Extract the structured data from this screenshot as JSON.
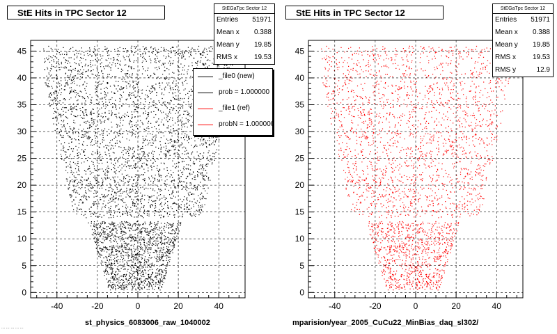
{
  "left_panel": {
    "title": "StE Hits in TPC Sector 12",
    "stats": {
      "name": "StEGaTpc Sector 12",
      "rows": [
        {
          "k": "Entries",
          "v": "51971"
        },
        {
          "k": "Mean x",
          "v": "0.388"
        },
        {
          "k": "Mean y",
          "v": "19.85"
        },
        {
          "k": "RMS x",
          "v": "19.53"
        }
      ]
    },
    "footer": "st_physics_6083006_raw_1040002",
    "color": "#000000"
  },
  "right_panel": {
    "title": "StE Hits in TPC Sector 12",
    "stats": {
      "name": "StEGaTpc Sector 12",
      "rows": [
        {
          "k": "Entries",
          "v": "51971"
        },
        {
          "k": "Mean x",
          "v": "0.388"
        },
        {
          "k": "Mean y",
          "v": "19.85"
        },
        {
          "k": "RMS x",
          "v": "19.53"
        },
        {
          "k": "RMS y",
          "v": "12.9"
        }
      ]
    },
    "footer": "mparision/year_2005_CuCu22_MinBias_daq_sl302/",
    "color": "#ff0000"
  },
  "legend": {
    "items": [
      {
        "label": "_file0 (new)",
        "color": "#000000"
      },
      {
        "label": "prob = 1.000000",
        "color": "#000000"
      },
      {
        "label": "_file1 (ref)",
        "color": "#ff0000"
      },
      {
        "label": "probN = 1.000000",
        "color": "#ff0000"
      }
    ]
  },
  "bottom_left_text": "... ... ... ... ...",
  "chart_data": [
    {
      "type": "scatter",
      "title": "StE Hits in TPC Sector 12",
      "xlabel": "st_physics_6083006_raw_1040002",
      "ylabel": "",
      "xlim": [
        -53,
        53
      ],
      "ylim": [
        -1,
        47
      ],
      "x_ticks": [
        -40,
        -20,
        0,
        20,
        40
      ],
      "y_ticks": [
        0,
        5,
        10,
        15,
        20,
        25,
        30,
        35,
        40,
        45
      ],
      "grid": true,
      "series": [
        {
          "color": "#000000",
          "entries": 51971
        }
      ],
      "envelope": [
        [
          0.5,
          13
        ],
        [
          13,
          23
        ],
        [
          15,
          32
        ],
        [
          40,
          47
        ],
        [
          45,
          47
        ]
      ]
    },
    {
      "type": "scatter",
      "title": "StE Hits in TPC Sector 12",
      "xlabel": "mparision/year_2005_CuCu22_MinBias_daq_sl302/",
      "ylabel": "",
      "xlim": [
        -53,
        53
      ],
      "ylim": [
        -1,
        47
      ],
      "x_ticks": [
        -40,
        -20,
        0,
        20,
        40
      ],
      "y_ticks": [
        0,
        5,
        10,
        15,
        20,
        25,
        30,
        35,
        40,
        45
      ],
      "grid": true,
      "series": [
        {
          "color": "#ff0000",
          "entries": 51971
        }
      ],
      "envelope": [
        [
          0.5,
          13
        ],
        [
          13,
          23
        ],
        [
          15,
          32
        ],
        [
          40,
          47
        ],
        [
          45,
          47
        ]
      ]
    }
  ]
}
